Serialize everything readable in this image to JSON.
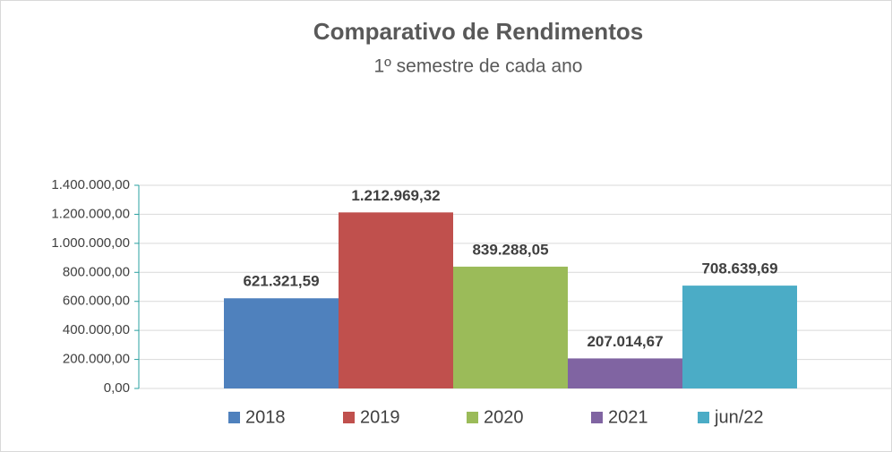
{
  "chart_data": {
    "type": "bar",
    "title": "Comparativo de Rendimentos",
    "subtitle": "1º semestre de cada ano",
    "categories": [
      null
    ],
    "series": [
      {
        "name": "2018",
        "color": "#4f81bd",
        "values": [
          621321.59
        ],
        "value_labels": [
          "621.321,59"
        ]
      },
      {
        "name": "2019",
        "color": "#c0504d",
        "values": [
          1212969.32
        ],
        "value_labels": [
          "1.212.969,32"
        ]
      },
      {
        "name": "2020",
        "color": "#9bbb59",
        "values": [
          839288.05
        ],
        "value_labels": [
          "839.288,05"
        ]
      },
      {
        "name": "2021",
        "color": "#8064a2",
        "values": [
          207014.67
        ],
        "value_labels": [
          "207.014,67"
        ]
      },
      {
        "name": "jun/22",
        "color": "#4bacc6",
        "values": [
          708639.69
        ],
        "value_labels": [
          "708.639,69"
        ]
      }
    ],
    "ylim": [
      0,
      1400000
    ],
    "yticks": [
      {
        "value": 0,
        "label": "0,00"
      },
      {
        "value": 200000,
        "label": "200.000,00"
      },
      {
        "value": 400000,
        "label": "400.000,00"
      },
      {
        "value": 600000,
        "label": "600.000,00"
      },
      {
        "value": 800000,
        "label": "800.000,00"
      },
      {
        "value": 1000000,
        "label": "1.000.000,00"
      },
      {
        "value": 1200000,
        "label": "1.200.000,00"
      },
      {
        "value": 1400000,
        "label": "1.400.000,00"
      }
    ],
    "grid": true,
    "legend": "bottom"
  }
}
